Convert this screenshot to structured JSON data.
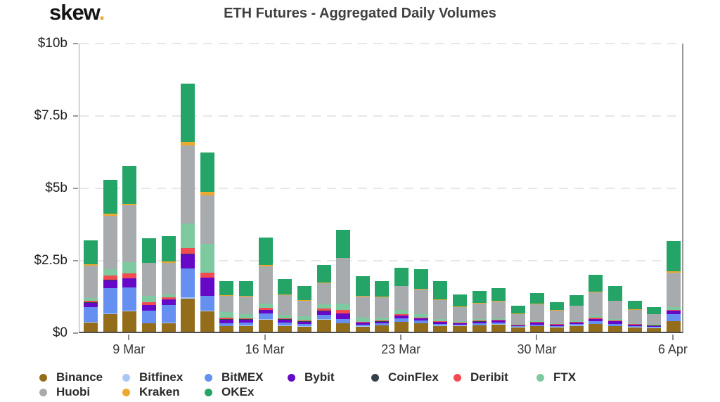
{
  "header": {
    "logo_text": "skew",
    "logo_dot": ".",
    "title": "ETH Futures - Aggregated Daily Volumes"
  },
  "colors": {
    "logo_dot": "#f1a33a",
    "grid": "#e7e7e7",
    "axis_left_right": "#9a9a9a",
    "axis_bottom": "#4d4d4d"
  },
  "chart_data": {
    "type": "bar",
    "stacked": true,
    "title": "ETH Futures - Aggregated Daily Volumes",
    "value_unit": "USD billions",
    "ylim": [
      0,
      10
    ],
    "grid": "dashed-horizontal",
    "legend_position": "bottom",
    "y_ticks": [
      {
        "label": "$10b",
        "value": 10
      },
      {
        "label": "$7.5b",
        "value": 7.5
      },
      {
        "label": "$5b",
        "value": 5
      },
      {
        "label": "$2.5b",
        "value": 2.5
      },
      {
        "label": "$0",
        "value": 0
      }
    ],
    "x_ticks": [
      {
        "label": "9 Mar",
        "index": 2
      },
      {
        "label": "16 Mar",
        "index": 9
      },
      {
        "label": "23 Mar",
        "index": 16
      },
      {
        "label": "30 Mar",
        "index": 23
      },
      {
        "label": "6 Apr",
        "index": 30
      }
    ],
    "categories": [
      "7 Mar",
      "8 Mar",
      "9 Mar",
      "10 Mar",
      "11 Mar",
      "12 Mar",
      "13 Mar",
      "14 Mar",
      "15 Mar",
      "16 Mar",
      "17 Mar",
      "18 Mar",
      "19 Mar",
      "20 Mar",
      "21 Mar",
      "22 Mar",
      "23 Mar",
      "24 Mar",
      "25 Mar",
      "26 Mar",
      "27 Mar",
      "28 Mar",
      "29 Mar",
      "30 Mar",
      "31 Mar",
      "1 Apr",
      "2 Apr",
      "3 Apr",
      "4 Apr",
      "5 Apr",
      "6 Apr"
    ],
    "series": [
      {
        "name": "Binance",
        "color": "#946d1a",
        "values": [
          0.32,
          0.6,
          0.7,
          0.28,
          0.3,
          1.15,
          0.7,
          0.19,
          0.2,
          0.42,
          0.2,
          0.18,
          0.42,
          0.28,
          0.18,
          0.22,
          0.34,
          0.28,
          0.2,
          0.2,
          0.22,
          0.25,
          0.15,
          0.19,
          0.15,
          0.2,
          0.26,
          0.19,
          0.15,
          0.13,
          0.36
        ]
      },
      {
        "name": "Bitfinex",
        "color": "#a9c8f7",
        "values": [
          0.02,
          0.02,
          0.02,
          0.01,
          0.01,
          0.03,
          0.02,
          0.01,
          0.01,
          0.01,
          0.01,
          0.01,
          0.01,
          0.01,
          0.01,
          0.01,
          0.01,
          0.01,
          0.01,
          0.01,
          0.01,
          0.01,
          0.01,
          0.01,
          0.01,
          0.01,
          0.01,
          0.01,
          0.01,
          0.01,
          0.01
        ]
      },
      {
        "name": "BitMEX",
        "color": "#6590f2",
        "values": [
          0.5,
          0.88,
          0.8,
          0.44,
          0.61,
          1.01,
          0.53,
          0.1,
          0.11,
          0.2,
          0.11,
          0.08,
          0.16,
          0.14,
          0.06,
          0.06,
          0.12,
          0.1,
          0.06,
          0.04,
          0.06,
          0.06,
          0.03,
          0.05,
          0.04,
          0.05,
          0.1,
          0.08,
          0.04,
          0.03,
          0.24
        ]
      },
      {
        "name": "Bybit",
        "color": "#6508c8",
        "values": [
          0.16,
          0.28,
          0.32,
          0.19,
          0.19,
          0.49,
          0.61,
          0.12,
          0.1,
          0.12,
          0.1,
          0.08,
          0.12,
          0.2,
          0.06,
          0.06,
          0.08,
          0.06,
          0.06,
          0.04,
          0.06,
          0.06,
          0.03,
          0.06,
          0.04,
          0.05,
          0.07,
          0.08,
          0.04,
          0.03,
          0.12
        ]
      },
      {
        "name": "CoinFlex",
        "color": "#36404a",
        "values": [
          0.01,
          0.01,
          0.01,
          0.01,
          0.01,
          0.01,
          0.01,
          0.01,
          0.01,
          0.01,
          0.01,
          0.01,
          0.01,
          0.01,
          0.01,
          0.01,
          0.01,
          0.01,
          0.01,
          0.01,
          0.01,
          0.01,
          0.01,
          0.01,
          0.01,
          0.01,
          0.01,
          0.01,
          0.01,
          0.01,
          0.01
        ]
      },
      {
        "name": "Deribit",
        "color": "#f24c50",
        "values": [
          0.06,
          0.15,
          0.16,
          0.1,
          0.08,
          0.2,
          0.16,
          0.05,
          0.04,
          0.06,
          0.03,
          0.03,
          0.08,
          0.12,
          0.03,
          0.03,
          0.04,
          0.03,
          0.03,
          0.02,
          0.02,
          0.02,
          0.02,
          0.02,
          0.02,
          0.02,
          0.03,
          0.02,
          0.02,
          0.01,
          0.02
        ]
      },
      {
        "name": "FTX",
        "color": "#7ec9a0",
        "values": [
          0.09,
          0.22,
          0.4,
          0.22,
          0.1,
          0.85,
          1.01,
          0.19,
          0.15,
          0.15,
          0.12,
          0.14,
          0.16,
          0.22,
          0.14,
          0.1,
          0.16,
          0.12,
          0.06,
          0.04,
          0.05,
          0.06,
          0.02,
          0.04,
          0.03,
          0.04,
          0.08,
          0.05,
          0.03,
          0.02,
          0.08
        ]
      },
      {
        "name": "Huobi",
        "color": "#a7abae",
        "values": [
          1.13,
          1.85,
          1.95,
          1.12,
          1.07,
          2.7,
          1.66,
          0.58,
          0.6,
          1.28,
          0.69,
          0.54,
          0.71,
          1.56,
          0.73,
          0.71,
          0.81,
          0.85,
          0.67,
          0.49,
          0.54,
          0.57,
          0.35,
          0.58,
          0.44,
          0.51,
          0.81,
          0.62,
          0.46,
          0.36,
          1.2
        ]
      },
      {
        "name": "Kraken",
        "color": "#eca82f",
        "values": [
          0.03,
          0.08,
          0.05,
          0.02,
          0.05,
          0.12,
          0.12,
          0.02,
          0.02,
          0.06,
          0.02,
          0.02,
          0.02,
          0.02,
          0.02,
          0.02,
          0.02,
          0.02,
          0.02,
          0.02,
          0.02,
          0.02,
          0.01,
          0.01,
          0.01,
          0.01,
          0.02,
          0.02,
          0.01,
          0.01,
          0.05
        ]
      },
      {
        "name": "OKEx",
        "color": "#24a567",
        "values": [
          0.83,
          1.15,
          1.33,
          0.84,
          0.88,
          2.0,
          1.38,
          0.47,
          0.5,
          0.95,
          0.53,
          0.49,
          0.63,
          0.97,
          0.67,
          0.53,
          0.62,
          0.67,
          0.64,
          0.42,
          0.41,
          0.45,
          0.28,
          0.36,
          0.28,
          0.36,
          0.58,
          0.51,
          0.29,
          0.23,
          1.04
        ]
      }
    ],
    "legend_rows": [
      [
        "Binance",
        "Bitfinex",
        "BitMEX",
        "Bybit",
        "CoinFlex",
        "Deribit",
        "FTX"
      ],
      [
        "Huobi",
        "Kraken",
        "OKEx"
      ]
    ]
  }
}
